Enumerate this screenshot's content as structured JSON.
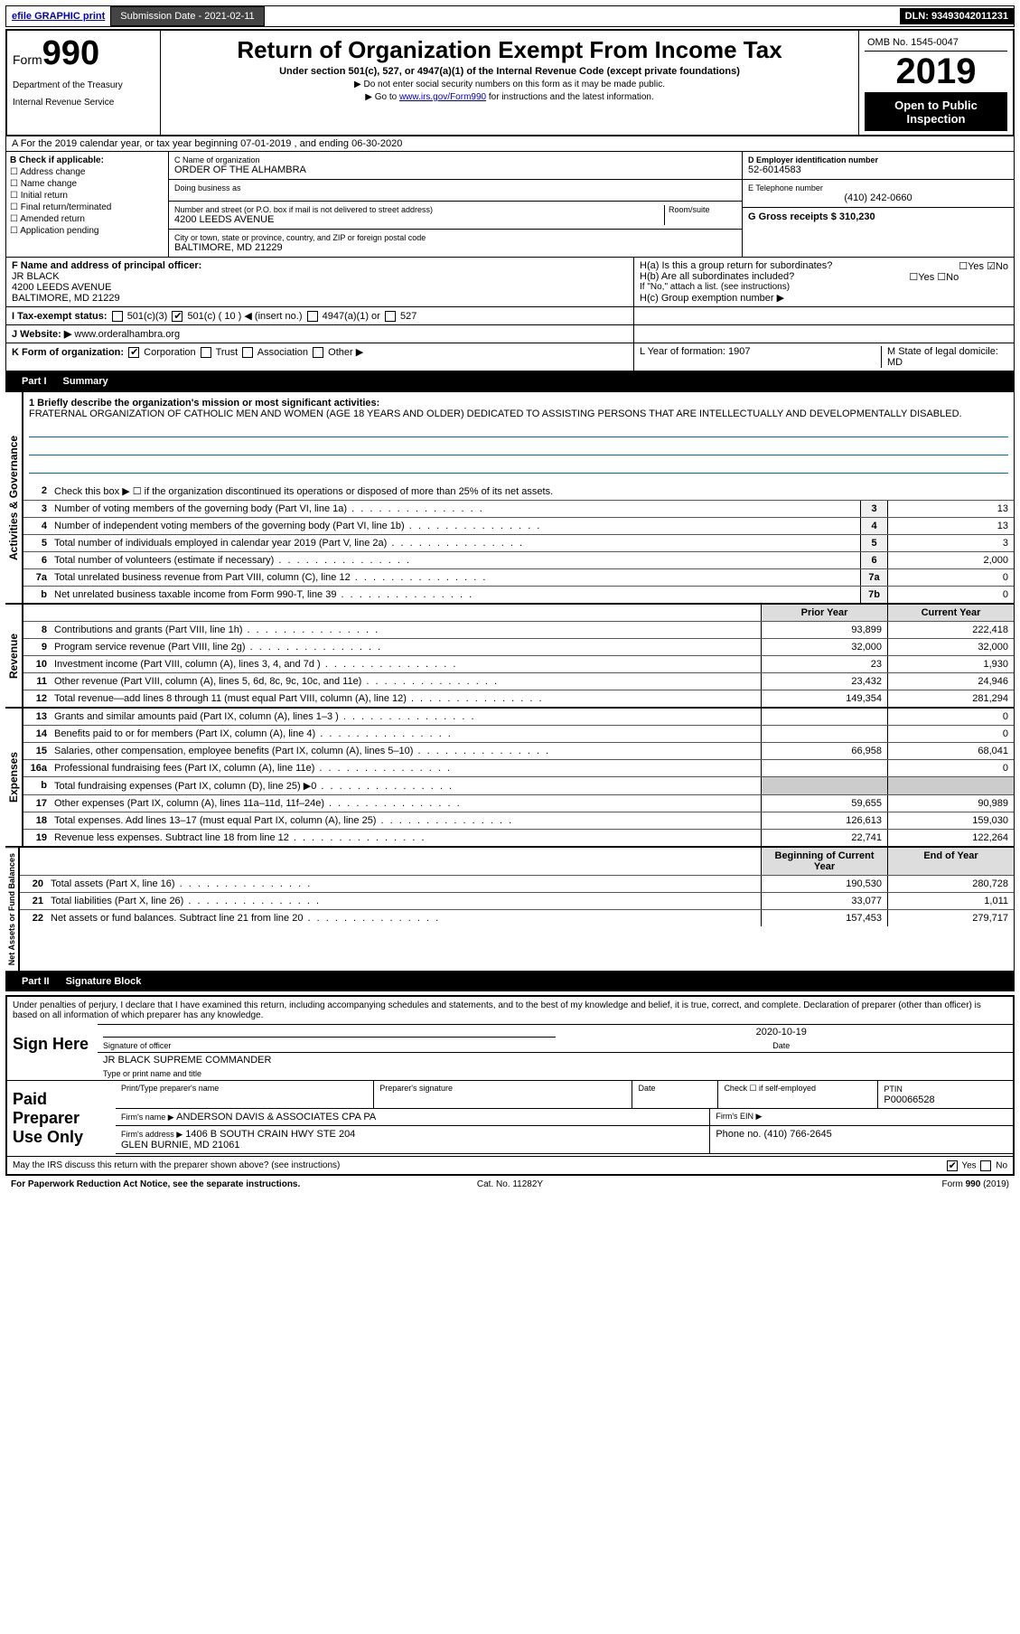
{
  "top": {
    "efile": "efile GRAPHIC print",
    "sub_label": "Submission Date - 2021-02-11",
    "dln": "DLN: 93493042011231"
  },
  "header": {
    "form_prefix": "Form",
    "form_num": "990",
    "dept1": "Department of the Treasury",
    "dept2": "Internal Revenue Service",
    "title": "Return of Organization Exempt From Income Tax",
    "sub1": "Under section 501(c), 527, or 4947(a)(1) of the Internal Revenue Code (except private foundations)",
    "sub2": "▶ Do not enter social security numbers on this form as it may be made public.",
    "sub3_pre": "▶ Go to ",
    "sub3_link": "www.irs.gov/Form990",
    "sub3_post": " for instructions and the latest information.",
    "omb": "OMB No. 1545-0047",
    "year": "2019",
    "open": "Open to Public Inspection"
  },
  "rowA": "A For the 2019 calendar year, or tax year beginning 07-01-2019    , and ending 06-30-2020",
  "colB": {
    "title": "B Check if applicable:",
    "opts": [
      "Address change",
      "Name change",
      "Initial return",
      "Final return/terminated",
      "Amended return",
      "Application pending"
    ]
  },
  "colC": {
    "name_lbl": "C Name of organization",
    "name_val": "ORDER OF THE ALHAMBRA",
    "dba_lbl": "Doing business as",
    "addr_lbl": "Number and street (or P.O. box if mail is not delivered to street address)",
    "room_lbl": "Room/suite",
    "addr_val": "4200 LEEDS AVENUE",
    "city_lbl": "City or town, state or province, country, and ZIP or foreign postal code",
    "city_val": "BALTIMORE, MD  21229"
  },
  "colDE": {
    "ein_lbl": "D Employer identification number",
    "ein_val": "52-6014583",
    "tel_lbl": "E Telephone number",
    "tel_val": "(410) 242-0660",
    "gross_lbl": "G Gross receipts $ 310,230"
  },
  "rowF": {
    "f_lbl": "F  Name and address of principal officer:",
    "f_val": "JR BLACK\n4200 LEEDS AVENUE\nBALTIMORE, MD  21229",
    "h_a": "H(a)  Is this a group return for subordinates?",
    "h_b": "H(b)  Are all subordinates included?",
    "h_b2": "If \"No,\" attach a list. (see instructions)",
    "h_c": "H(c)  Group exemption number ▶"
  },
  "rowI": {
    "lbl": "I    Tax-exempt status:",
    "opt1": "501(c)(3)",
    "opt2": "501(c) ( 10 ) ◀ (insert no.)",
    "opt3": "4947(a)(1) or",
    "opt4": "527"
  },
  "rowJ": {
    "lbl": "J    Website: ▶",
    "val": "www.orderalhambra.org"
  },
  "rowK": {
    "lbl": "K Form of organization:",
    "opts": [
      "Corporation",
      "Trust",
      "Association",
      "Other ▶"
    ],
    "l_lbl": "L Year of formation: 1907",
    "m_lbl": "M State of legal domicile: MD"
  },
  "part1": {
    "hdr": "Part I",
    "title": "Summary",
    "q1_lbl": "1  Briefly describe the organization's mission or most significant activities:",
    "q1_text": "FRATERNAL ORGANIZATION OF CATHOLIC MEN AND WOMEN (AGE 18 YEARS AND OLDER) DEDICATED TO ASSISTING PERSONS THAT ARE INTELLECTUALLY AND DEVELOPMENTALLY DISABLED.",
    "q2": "Check this box ▶ ☐  if the organization discontinued its operations or disposed of more than 25% of its net assets.",
    "side_act": "Activities & Governance",
    "side_rev": "Revenue",
    "side_exp": "Expenses",
    "side_net": "Net Assets or Fund Balances",
    "prior_hdr": "Prior Year",
    "curr_hdr": "Current Year",
    "beg_hdr": "Beginning of Current Year",
    "end_hdr": "End of Year",
    "lines_gov": [
      {
        "n": "3",
        "t": "Number of voting members of the governing body (Part VI, line 1a)",
        "b": "3",
        "v": "13"
      },
      {
        "n": "4",
        "t": "Number of independent voting members of the governing body (Part VI, line 1b)",
        "b": "4",
        "v": "13"
      },
      {
        "n": "5",
        "t": "Total number of individuals employed in calendar year 2019 (Part V, line 2a)",
        "b": "5",
        "v": "3"
      },
      {
        "n": "6",
        "t": "Total number of volunteers (estimate if necessary)",
        "b": "6",
        "v": "2,000"
      },
      {
        "n": "7a",
        "t": "Total unrelated business revenue from Part VIII, column (C), line 12",
        "b": "7a",
        "v": "0"
      },
      {
        "n": "b",
        "t": "Net unrelated business taxable income from Form 990-T, line 39",
        "b": "7b",
        "v": "0"
      }
    ],
    "lines_rev": [
      {
        "n": "8",
        "t": "Contributions and grants (Part VIII, line 1h)",
        "p": "93,899",
        "c": "222,418"
      },
      {
        "n": "9",
        "t": "Program service revenue (Part VIII, line 2g)",
        "p": "32,000",
        "c": "32,000"
      },
      {
        "n": "10",
        "t": "Investment income (Part VIII, column (A), lines 3, 4, and 7d )",
        "p": "23",
        "c": "1,930"
      },
      {
        "n": "11",
        "t": "Other revenue (Part VIII, column (A), lines 5, 6d, 8c, 9c, 10c, and 11e)",
        "p": "23,432",
        "c": "24,946"
      },
      {
        "n": "12",
        "t": "Total revenue—add lines 8 through 11 (must equal Part VIII, column (A), line 12)",
        "p": "149,354",
        "c": "281,294"
      }
    ],
    "lines_exp": [
      {
        "n": "13",
        "t": "Grants and similar amounts paid (Part IX, column (A), lines 1–3 )",
        "p": "",
        "c": "0"
      },
      {
        "n": "14",
        "t": "Benefits paid to or for members (Part IX, column (A), line 4)",
        "p": "",
        "c": "0"
      },
      {
        "n": "15",
        "t": "Salaries, other compensation, employee benefits (Part IX, column (A), lines 5–10)",
        "p": "66,958",
        "c": "68,041"
      },
      {
        "n": "16a",
        "t": "Professional fundraising fees (Part IX, column (A), line 11e)",
        "p": "",
        "c": "0"
      },
      {
        "n": "b",
        "t": "Total fundraising expenses (Part IX, column (D), line 25) ▶0",
        "p": "",
        "c": "",
        "shade": true
      },
      {
        "n": "17",
        "t": "Other expenses (Part IX, column (A), lines 11a–11d, 11f–24e)",
        "p": "59,655",
        "c": "90,989"
      },
      {
        "n": "18",
        "t": "Total expenses. Add lines 13–17 (must equal Part IX, column (A), line 25)",
        "p": "126,613",
        "c": "159,030"
      },
      {
        "n": "19",
        "t": "Revenue less expenses. Subtract line 18 from line 12",
        "p": "22,741",
        "c": "122,264"
      }
    ],
    "lines_net": [
      {
        "n": "20",
        "t": "Total assets (Part X, line 16)",
        "p": "190,530",
        "c": "280,728"
      },
      {
        "n": "21",
        "t": "Total liabilities (Part X, line 26)",
        "p": "33,077",
        "c": "1,011"
      },
      {
        "n": "22",
        "t": "Net assets or fund balances. Subtract line 21 from line 20",
        "p": "157,453",
        "c": "279,717"
      }
    ]
  },
  "part2": {
    "hdr": "Part II",
    "title": "Signature Block",
    "decl": "Under penalties of perjury, I declare that I have examined this return, including accompanying schedules and statements, and to the best of my knowledge and belief, it is true, correct, and complete. Declaration of preparer (other than officer) is based on all information of which preparer has any knowledge.",
    "sign_here": "Sign Here",
    "sig_off": "Signature of officer",
    "date_lbl": "Date",
    "date_val": "2020-10-19",
    "name_title": "JR BLACK  SUPREME COMMANDER",
    "name_lbl": "Type or print name and title",
    "paid": "Paid Preparer Use Only",
    "prep_name_lbl": "Print/Type preparer's name",
    "prep_sig_lbl": "Preparer's signature",
    "prep_date_lbl": "Date",
    "prep_check": "Check ☐ if self-employed",
    "ptin_lbl": "PTIN",
    "ptin_val": "P00066528",
    "firm_name_lbl": "Firm's name    ▶",
    "firm_name_val": "ANDERSON DAVIS & ASSOCIATES CPA PA",
    "firm_ein_lbl": "Firm's EIN ▶",
    "firm_addr_lbl": "Firm's address ▶",
    "firm_addr_val": "1406 B SOUTH CRAIN HWY STE 204\nGLEN BURNIE, MD  21061",
    "firm_phone_lbl": "Phone no. (410) 766-2645",
    "may_irs": "May the IRS discuss this return with the preparer shown above? (see instructions)"
  },
  "footer": {
    "left": "For Paperwork Reduction Act Notice, see the separate instructions.",
    "mid": "Cat. No. 11282Y",
    "right": "Form 990 (2019)"
  },
  "colors": {
    "link": "#0000cc",
    "band": "#000000",
    "shade": "#cccccc"
  }
}
